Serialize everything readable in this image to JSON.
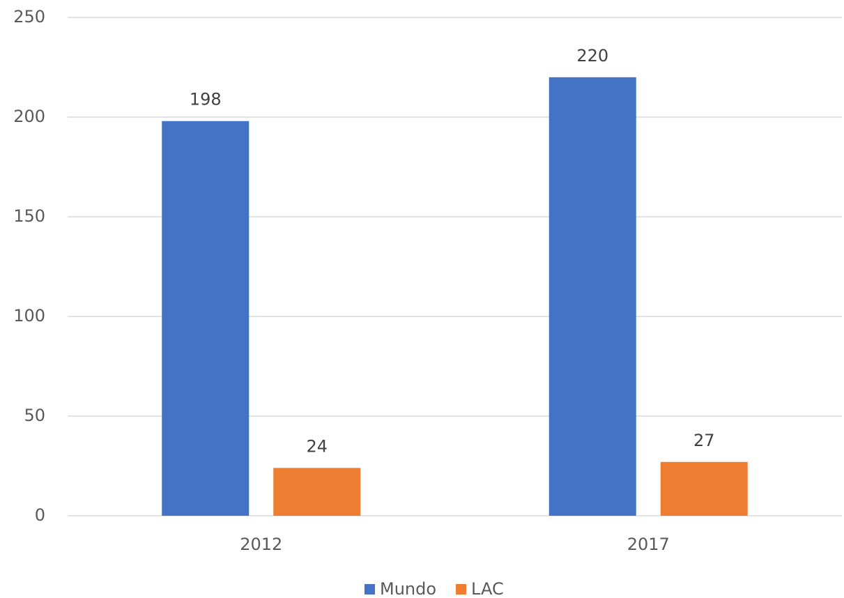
{
  "chart_data": {
    "type": "bar",
    "categories": [
      "2012",
      "2017"
    ],
    "series": [
      {
        "name": "Mundo",
        "color": "#4472c4",
        "values": [
          198,
          220
        ]
      },
      {
        "name": "LAC",
        "color": "#ed7d31",
        "values": [
          24,
          27
        ]
      }
    ],
    "ylim": [
      0,
      250
    ],
    "yticks": [
      0,
      50,
      100,
      150,
      200,
      250
    ],
    "grid": true,
    "legend": "bottom"
  }
}
